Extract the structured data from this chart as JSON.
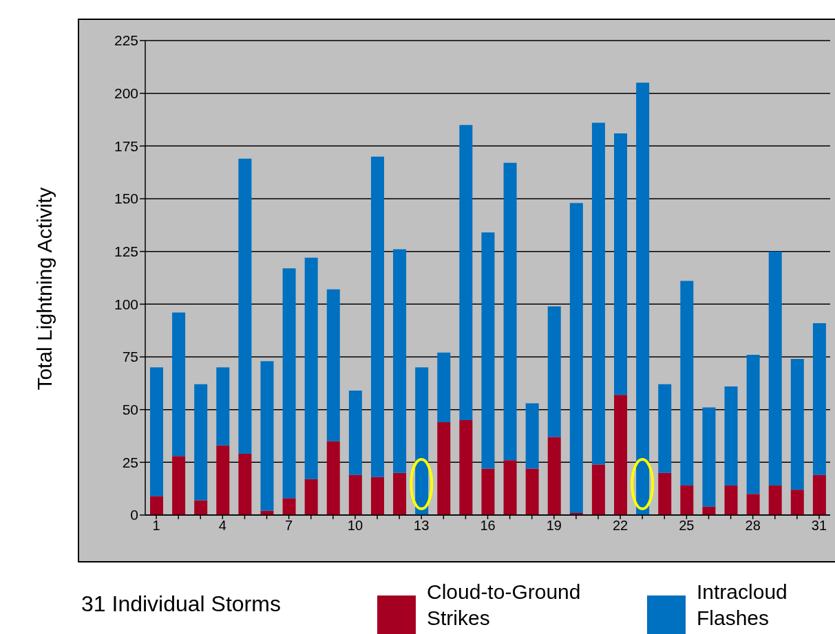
{
  "chart_data": {
    "type": "bar",
    "stacked": true,
    "xlabel": "31 Individual Storms",
    "ylabel": "Total Lightning Activity",
    "categories": [
      "1",
      null,
      null,
      "4",
      null,
      null,
      "7",
      null,
      null,
      "10",
      null,
      null,
      "13",
      null,
      null,
      "16",
      null,
      null,
      "19",
      null,
      null,
      "22",
      null,
      null,
      "25",
      null,
      null,
      "28",
      null,
      null,
      "31"
    ],
    "series": [
      {
        "name": "Cloud-to-Ground Strikes",
        "color": "#a50021",
        "values": [
          9,
          28,
          7,
          33,
          29,
          2,
          8,
          17,
          35,
          19,
          18,
          20,
          0,
          44,
          45,
          22,
          26,
          22,
          37,
          1,
          24,
          57,
          0,
          20,
          14,
          4,
          14,
          10,
          14,
          12,
          19
        ]
      },
      {
        "name": "Intracloud Flashes",
        "color": "#0070c0",
        "values": [
          61,
          68,
          55,
          37,
          140,
          71,
          109,
          105,
          72,
          40,
          152,
          106,
          70,
          33,
          140,
          112,
          141,
          31,
          62,
          147,
          162,
          124,
          205,
          42,
          97,
          47,
          47,
          66,
          111,
          62,
          72
        ]
      }
    ],
    "ylim": [
      0,
      225
    ],
    "yticks": [
      0,
      25,
      50,
      75,
      100,
      125,
      150,
      175,
      200,
      225
    ],
    "grid": "y",
    "legend": "bottom"
  }
}
